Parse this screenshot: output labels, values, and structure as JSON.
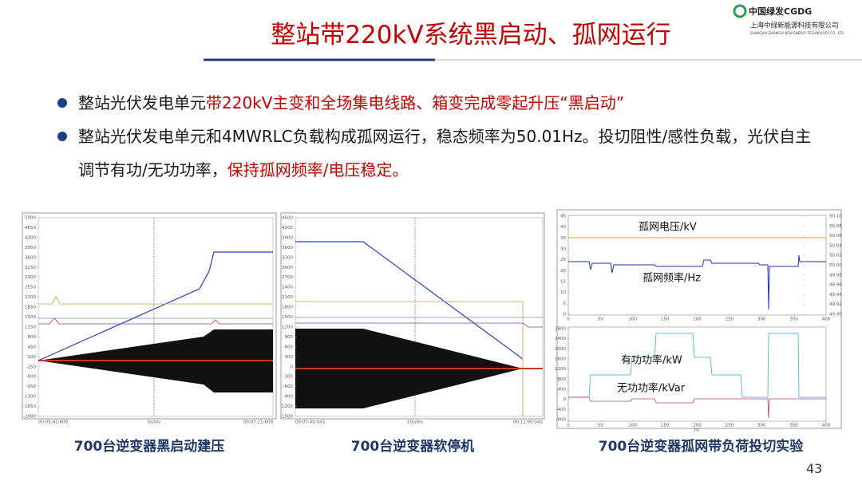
{
  "header": {
    "title": "整站带220kV系统黑启动、孤网运行",
    "logo": {
      "brand": "中国绿发CGDG",
      "company": "上海中绿新能源科技有限公司",
      "company_en": "SHANGHAI ZHONGLV NEW ENERGY TECHNOLOGY CO., LTD."
    }
  },
  "bullets": [
    {
      "segments": [
        {
          "text": "整站光伏发电单元",
          "color": "#1a1a1a"
        },
        {
          "text": "带220kV主变和全场集电线路、箱变完成零起升压“黑启动”",
          "color": "#c00000"
        }
      ]
    },
    {
      "segments": [
        {
          "text": "整站光伏发电单元和4MWRLC负载构成孤网运行，稳态频率为50.01Hz。投切阻性/感性负载，光伏自主调节有功/无功功率，",
          "color": "#1a1a1a"
        },
        {
          "text": "保持孤网频率/电压稳定。",
          "color": "#c00000"
        }
      ]
    }
  ],
  "panels": [
    {
      "caption": "700台逆变器黑启动建压",
      "yticks": [
        5000,
        4650,
        4300,
        3950,
        3600,
        3250,
        2900,
        2550,
        2200,
        1850,
        1500,
        1150,
        800,
        450,
        100,
        -250,
        -600,
        -950,
        -1300,
        -1650,
        -2000
      ],
      "xlabels": [
        "00:05:41:609",
        "5s/div",
        "00:07:21:609"
      ]
    },
    {
      "caption": "700台逆变器软停机",
      "yticks": [
        4500,
        4200,
        3900,
        3600,
        3300,
        3000,
        2700,
        2400,
        2100,
        1800,
        1500,
        1200,
        900,
        600,
        300,
        0,
        -300,
        -600,
        -900,
        -1200,
        -1500
      ],
      "xlabels": [
        "00:07:40:043",
        "10s/div",
        "00:11:00:043"
      ]
    },
    {
      "caption": "700台逆变器孤网带负荷投切实验",
      "top": {
        "yticks": [
          45,
          40,
          35,
          30,
          25,
          20,
          15,
          10,
          5,
          0
        ],
        "y2ticks": [
          "50.10",
          "50.08",
          "50.06",
          "50.04",
          "50.02",
          "50.00",
          "49.98",
          "49.96",
          "49.94",
          "49.92",
          "49.90"
        ],
        "xticks": [
          0,
          50,
          100,
          150,
          200,
          250,
          300,
          350,
          400
        ],
        "labels": [
          "孤网电压/kV",
          "孤网频率/Hz"
        ]
      },
      "bottom": {
        "yticks": [
          2800,
          2400,
          2000,
          1600,
          1200,
          800,
          400,
          0,
          -400,
          -800
        ],
        "xticks": [
          0,
          50,
          100,
          150,
          200,
          250,
          300,
          350,
          400
        ],
        "labels": [
          "有功功率/kW",
          "无功功率/kVar"
        ],
        "xlabel": "t/s"
      }
    }
  ],
  "page_number": "43"
}
